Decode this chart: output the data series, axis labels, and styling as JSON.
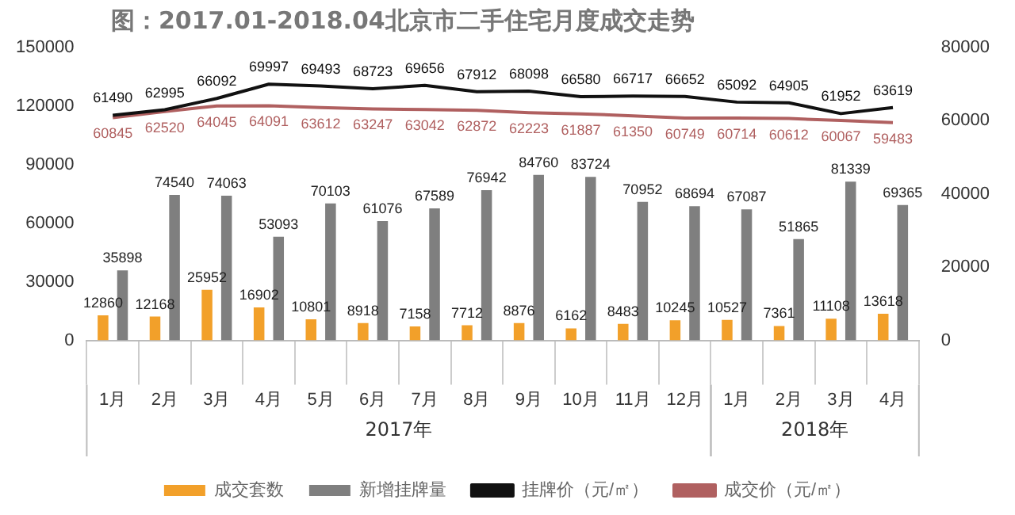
{
  "chart_data": {
    "type": "bar",
    "title": "图：2017.01-2018.04北京市二手住宅月度成交走势",
    "categories": [
      "1月",
      "2月",
      "3月",
      "4月",
      "5月",
      "6月",
      "7月",
      "8月",
      "9月",
      "10月",
      "11月",
      "12月",
      "1月",
      "2月",
      "3月",
      "4月"
    ],
    "series": [
      {
        "name": "成交套数",
        "color": "#f2a02a",
        "values": [
          12860,
          12168,
          25952,
          16902,
          10801,
          8918,
          7158,
          7712,
          8876,
          6162,
          8483,
          10245,
          10527,
          7361,
          11108,
          13618
        ]
      },
      {
        "name": "新增挂牌量",
        "color": "#7f7f7f",
        "values": [
          35898,
          74540,
          74063,
          53093,
          70103,
          61076,
          67589,
          76942,
          84760,
          83724,
          70952,
          68694,
          67087,
          51865,
          81339,
          69365
        ]
      },
      {
        "name": "挂牌价（元/㎡）",
        "type": "line",
        "axis": "y2",
        "color": "#111111",
        "values": [
          61490,
          62995,
          66092,
          69997,
          69493,
          68723,
          69656,
          67912,
          68098,
          66580,
          66717,
          66652,
          65092,
          64905,
          61952,
          63619
        ]
      },
      {
        "name": "成交价（元/㎡）",
        "type": "line",
        "axis": "y2",
        "color": "#b06060",
        "values": [
          60845,
          62520,
          64045,
          64091,
          63612,
          63247,
          63042,
          62872,
          62223,
          61887,
          61350,
          60749,
          60714,
          60612,
          60067,
          59483
        ]
      }
    ],
    "ylim": [
      0,
      150000
    ],
    "yticks": [
      0,
      30000,
      60000,
      90000,
      120000,
      150000
    ],
    "y2lim": [
      0,
      80000
    ],
    "y2ticks": [
      0,
      20000,
      40000,
      60000,
      80000
    ],
    "annotations": [
      "2017年",
      "2018年"
    ],
    "data_labels": true,
    "grid": false,
    "legend": "bottom",
    "marker": "none"
  }
}
